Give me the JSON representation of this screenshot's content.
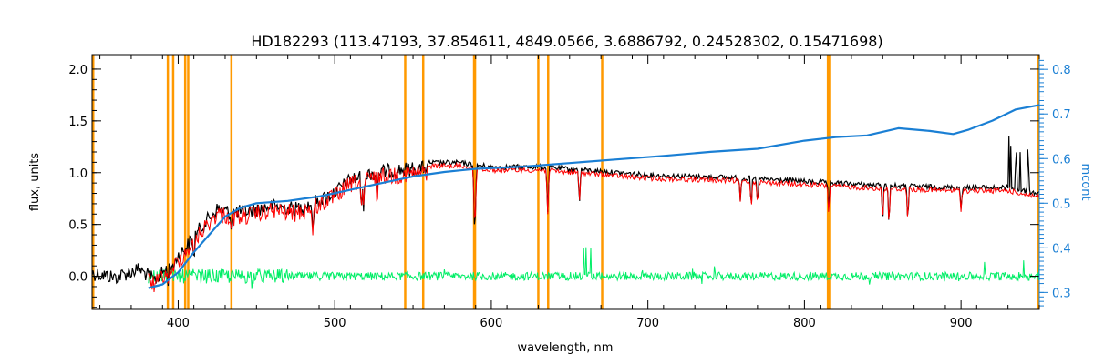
{
  "chart_data": {
    "type": "line",
    "title": "HD182293    (113.47193, 37.854611, 4849.0566, 3.6886792, 0.24528302, 0.15471698)",
    "xlabel": "wavelength, nm",
    "ylabel": "flux, units",
    "y2label": "mcont",
    "xlim": [
      345,
      950
    ],
    "ylim": [
      -0.32,
      2.14
    ],
    "y2lim": [
      0.262,
      0.833
    ],
    "x_ticks": [
      400,
      500,
      600,
      700,
      800,
      900
    ],
    "y_ticks": [
      0.0,
      0.5,
      1.0,
      1.5,
      2.0
    ],
    "y_tick_labels": [
      "0.0",
      "0.5",
      "1.0",
      "1.5",
      "2.0"
    ],
    "y2_ticks": [
      0.3,
      0.4,
      0.5,
      0.6,
      0.7,
      0.8
    ],
    "y2_tick_labels": [
      "0.3",
      "0.4",
      "0.5",
      "0.6",
      "0.7",
      "0.8"
    ],
    "colors": {
      "observed": "#000000",
      "model": "#ff0000",
      "residual": "#00ee66",
      "continuum": "#1a7fd4",
      "lines": "#ff9900",
      "right_axis": "#1a7fd4"
    },
    "vertical_lines_nm": [
      393.4,
      396.8,
      404.5,
      406.4,
      434.0,
      545.0,
      556.5,
      589.0,
      589.6,
      630.0,
      636.3,
      670.8,
      815.0,
      815.8
    ],
    "series": [
      {
        "role": "observed spectrum",
        "color": "#000000",
        "x_range": [
          345,
          950
        ],
        "envelope": [
          [
            345,
            0.1
          ],
          [
            360,
            0.06
          ],
          [
            375,
            0.14
          ],
          [
            385,
            0.03
          ],
          [
            395,
            0.18
          ],
          [
            405,
            0.35
          ],
          [
            415,
            0.55
          ],
          [
            425,
            0.72
          ],
          [
            435,
            0.68
          ],
          [
            445,
            0.7
          ],
          [
            460,
            0.75
          ],
          [
            475,
            0.72
          ],
          [
            490,
            0.8
          ],
          [
            500,
            0.88
          ],
          [
            510,
            1.0
          ],
          [
            520,
            1.05
          ],
          [
            530,
            1.08
          ],
          [
            545,
            1.1
          ],
          [
            560,
            1.12
          ],
          [
            580,
            1.12
          ],
          [
            600,
            1.08
          ],
          [
            630,
            1.08
          ],
          [
            660,
            1.05
          ],
          [
            700,
            1.0
          ],
          [
            750,
            0.98
          ],
          [
            800,
            0.94
          ],
          [
            850,
            0.9
          ],
          [
            900,
            0.88
          ],
          [
            930,
            0.88
          ],
          [
            950,
            0.82
          ]
        ]
      },
      {
        "role": "model spectrum",
        "color": "#ff0000",
        "x_range": [
          381,
          950
        ]
      },
      {
        "role": "residuals",
        "color": "#00ee66",
        "x_range": [
          381,
          950
        ],
        "level": 0.0
      },
      {
        "role": "continuum (mcont, right axis)",
        "color": "#1a7fd4",
        "axis": "right",
        "points": [
          [
            381,
            0.31
          ],
          [
            390,
            0.318
          ],
          [
            400,
            0.345
          ],
          [
            410,
            0.39
          ],
          [
            420,
            0.43
          ],
          [
            430,
            0.47
          ],
          [
            440,
            0.49
          ],
          [
            450,
            0.5
          ],
          [
            470,
            0.505
          ],
          [
            490,
            0.515
          ],
          [
            510,
            0.53
          ],
          [
            530,
            0.545
          ],
          [
            550,
            0.56
          ],
          [
            570,
            0.57
          ],
          [
            590,
            0.577
          ],
          [
            620,
            0.582
          ],
          [
            650,
            0.59
          ],
          [
            680,
            0.598
          ],
          [
            710,
            0.606
          ],
          [
            740,
            0.615
          ],
          [
            770,
            0.622
          ],
          [
            800,
            0.64
          ],
          [
            820,
            0.648
          ],
          [
            840,
            0.652
          ],
          [
            860,
            0.668
          ],
          [
            880,
            0.662
          ],
          [
            895,
            0.655
          ],
          [
            905,
            0.665
          ],
          [
            920,
            0.685
          ],
          [
            935,
            0.71
          ],
          [
            950,
            0.72
          ]
        ]
      }
    ]
  }
}
